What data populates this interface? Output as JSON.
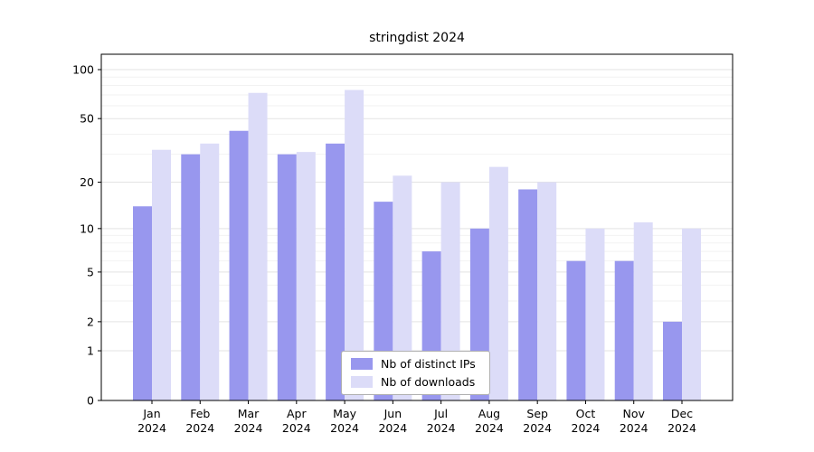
{
  "chart_data": {
    "type": "bar",
    "title": "stringdist 2024",
    "year": "2024",
    "categories": [
      "Jan",
      "Feb",
      "Mar",
      "Apr",
      "May",
      "Jun",
      "Jul",
      "Aug",
      "Sep",
      "Oct",
      "Nov",
      "Dec"
    ],
    "series": [
      {
        "name": "Nb of distinct IPs",
        "color": "#9897ee",
        "values": [
          14,
          30,
          42,
          30,
          35,
          15,
          7,
          10,
          18,
          6,
          6,
          2
        ]
      },
      {
        "name": "Nb of downloads",
        "color": "#dcdcf8",
        "values": [
          32,
          35,
          72,
          31,
          75,
          22,
          20,
          25,
          20,
          10,
          11,
          10
        ]
      }
    ],
    "yticks": [
      0,
      1,
      2,
      5,
      10,
      20,
      50,
      100
    ],
    "yscale": "log1p",
    "ylim": [
      0,
      100
    ],
    "grid": true,
    "legend_position": "bottom-center",
    "xlabel": "",
    "ylabel": ""
  }
}
